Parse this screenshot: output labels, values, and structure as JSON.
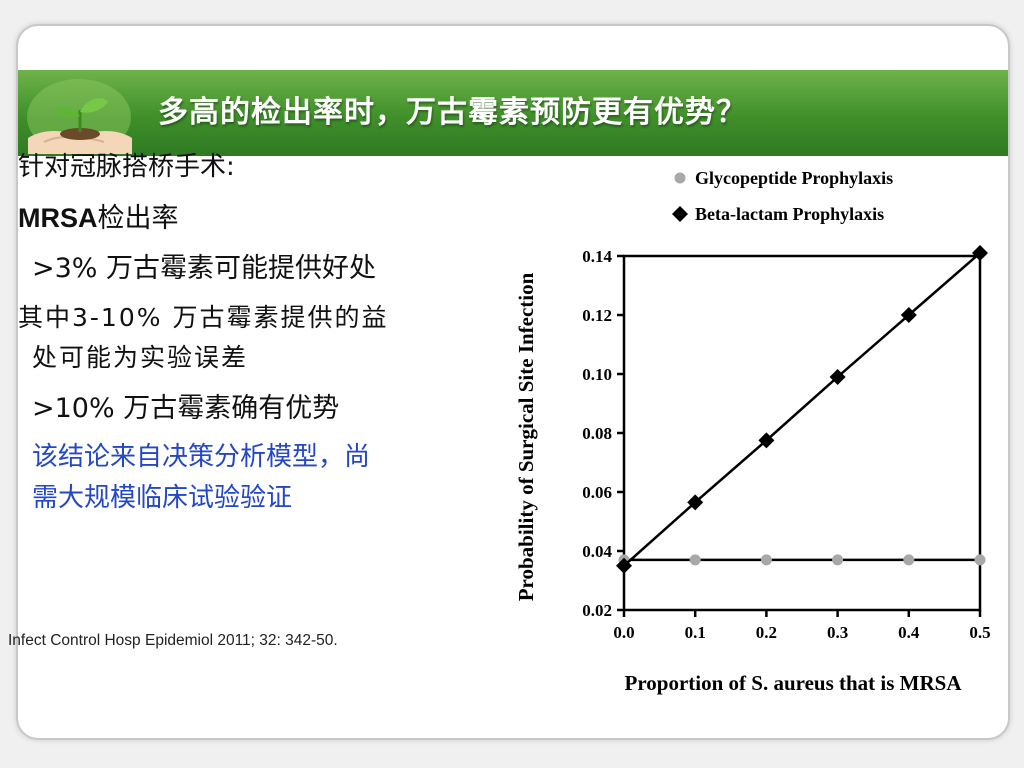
{
  "slide": {
    "title": "多高的检出率时，万古霉素预防更有优势？",
    "bullets": {
      "line1": "针对冠脉搭桥手术:",
      "line2_bold": "MRSA",
      "line2_rest": "检出率",
      "line3": ">3% 万古霉素可能提供好处",
      "line4a": "其中3-10% 万古霉素提供的益",
      "line4b": "处可能为实验误差",
      "line5": ">10% 万古霉素确有优势",
      "note1": "该结论来自决策分析模型，尚",
      "note2": "需大规模临床试验验证"
    },
    "citation": "Infect Control Hosp Epidemiol 2011; 32: 342-50.",
    "colors": {
      "title_bar": "#3f8f2a",
      "title_text": "#ffffff",
      "note_text": "#2447c8",
      "glyco_marker": "#a8a8a8",
      "beta_marker": "#000000"
    }
  },
  "chart_data": {
    "type": "line",
    "title": "",
    "xlabel": "Proportion of S. aureus that is MRSA",
    "ylabel": "Probability of Surgical Site Infection",
    "x": [
      0.0,
      0.1,
      0.2,
      0.3,
      0.4,
      0.5
    ],
    "xlim": [
      0.0,
      0.5
    ],
    "ylim": [
      0.02,
      0.14
    ],
    "xticks": [
      "0.0",
      "0.1",
      "0.2",
      "0.3",
      "0.4",
      "0.5"
    ],
    "yticks": [
      "0.02",
      "0.04",
      "0.06",
      "0.08",
      "0.10",
      "0.12",
      "0.14"
    ],
    "legend_position": "top",
    "grid": false,
    "series": [
      {
        "name": "Glycopeptide Prophylaxis",
        "marker": "circle",
        "color": "#a8a8a8",
        "values": [
          0.037,
          0.037,
          0.037,
          0.037,
          0.037,
          0.037
        ]
      },
      {
        "name": "Beta-lactam Prophylaxis",
        "marker": "diamond",
        "color": "#000000",
        "values": [
          0.035,
          0.0565,
          0.0775,
          0.099,
          0.12,
          0.141
        ]
      }
    ]
  }
}
